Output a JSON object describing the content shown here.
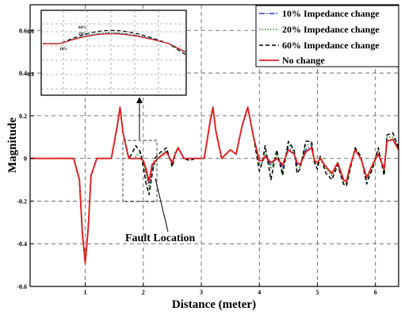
{
  "chart_data": {
    "type": "line",
    "title": "",
    "xlabel": "Distance (meter)",
    "ylabel": "Magnitude",
    "xlim": [
      0.05,
      6.4
    ],
    "ylim": [
      -0.6,
      0.72
    ],
    "x_ticks": [
      1,
      2,
      3,
      4,
      5,
      6
    ],
    "y_ticks": [
      -0.6,
      -0.4,
      -0.2,
      0,
      0.2,
      0.4,
      0.6
    ],
    "y_tick_labels": [
      "-0.6",
      "-0.4",
      "-0.2",
      "0",
      "0.2",
      "0.4",
      "0.6"
    ],
    "grid": true,
    "legend_position": "top-right",
    "series": [
      {
        "name": "10% Impedance change",
        "color": "#1f3fbf",
        "dash": "dash-dot",
        "x": [
          0.05,
          0.8,
          0.9,
          0.95,
          1.0,
          1.05,
          1.1,
          1.2,
          1.45,
          1.55,
          1.6,
          1.65,
          1.75,
          1.85,
          1.95,
          2.0,
          2.05,
          2.1,
          2.15,
          2.25,
          2.4,
          2.5,
          2.55,
          2.6,
          2.7,
          2.8,
          2.9,
          3.05,
          3.15,
          3.2,
          3.25,
          3.35,
          3.5,
          3.6,
          3.7,
          3.8,
          3.9,
          4.0,
          4.05,
          4.1,
          4.2,
          4.3,
          4.4,
          4.5,
          4.6,
          4.65,
          4.7,
          4.8,
          4.9,
          4.95,
          5.0,
          5.05,
          5.15,
          5.25,
          5.35,
          5.45,
          5.5,
          5.55,
          5.65,
          5.75,
          5.85,
          5.9,
          5.95,
          6.05,
          6.15,
          6.2,
          6.3,
          6.4
        ],
        "y": [
          0,
          0,
          -0.1,
          -0.35,
          -0.49,
          -0.33,
          -0.08,
          0,
          0,
          0.15,
          0.24,
          0.12,
          0,
          0,
          0,
          -0.01,
          -0.06,
          -0.12,
          -0.04,
          0,
          0.03,
          -0.02,
          0.02,
          0.05,
          0,
          0,
          0,
          0,
          0.17,
          0.24,
          0.13,
          0,
          0.04,
          0.02,
          0.15,
          0.24,
          0.1,
          -0.01,
          -0.02,
          0.01,
          -0.03,
          0,
          -0.04,
          0.05,
          0.02,
          -0.03,
          -0.03,
          0.04,
          0.06,
          -0.01,
          -0.02,
          0,
          -0.04,
          -0.07,
          -0.02,
          -0.1,
          -0.11,
          -0.05,
          0.04,
          0,
          -0.09,
          -0.06,
          -0.03,
          0.02,
          -0.05,
          0.08,
          0.09,
          0.05
        ]
      },
      {
        "name": "20% Impedance change",
        "color": "#1a8a1a",
        "dash": "dotted",
        "x": [
          0.05,
          0.8,
          0.9,
          0.95,
          1.0,
          1.05,
          1.1,
          1.2,
          1.45,
          1.55,
          1.6,
          1.65,
          1.75,
          1.85,
          1.9,
          1.95,
          2.0,
          2.05,
          2.1,
          2.15,
          2.25,
          2.4,
          2.5,
          2.55,
          2.6,
          2.7,
          2.8,
          2.9,
          3.05,
          3.15,
          3.2,
          3.25,
          3.35,
          3.5,
          3.6,
          3.7,
          3.8,
          3.9,
          4.0,
          4.05,
          4.1,
          4.2,
          4.3,
          4.4,
          4.5,
          4.6,
          4.65,
          4.7,
          4.8,
          4.9,
          4.95,
          5.0,
          5.05,
          5.15,
          5.25,
          5.35,
          5.45,
          5.5,
          5.55,
          5.65,
          5.75,
          5.85,
          5.9,
          5.95,
          6.05,
          6.15,
          6.2,
          6.3,
          6.4
        ],
        "y": [
          0,
          0,
          -0.1,
          -0.35,
          -0.49,
          -0.33,
          -0.08,
          0,
          0,
          0.15,
          0.24,
          0.12,
          0,
          0,
          0.02,
          0.03,
          -0.02,
          -0.08,
          -0.14,
          -0.05,
          0,
          0.04,
          -0.03,
          0.03,
          0.05,
          0,
          0,
          0,
          0,
          0.17,
          0.24,
          0.13,
          0,
          0.04,
          0.02,
          0.15,
          0.24,
          0.1,
          -0.03,
          -0.02,
          0.03,
          -0.05,
          0.02,
          -0.06,
          0.07,
          0.03,
          -0.05,
          -0.04,
          0.06,
          0.07,
          -0.02,
          -0.03,
          0.01,
          -0.05,
          -0.08,
          -0.03,
          -0.11,
          -0.12,
          -0.06,
          0.05,
          0,
          -0.1,
          -0.07,
          -0.04,
          0.04,
          -0.06,
          0.1,
          0.1,
          0.05
        ]
      },
      {
        "name": "60% Impedance change",
        "color": "#000000",
        "dash": "dashed",
        "x": [
          0.05,
          0.8,
          0.9,
          0.95,
          1.0,
          1.05,
          1.1,
          1.2,
          1.45,
          1.55,
          1.6,
          1.65,
          1.75,
          1.8,
          1.87,
          1.95,
          2.0,
          2.05,
          2.1,
          2.15,
          2.2,
          2.3,
          2.4,
          2.5,
          2.55,
          2.6,
          2.7,
          2.8,
          2.9,
          3.05,
          3.15,
          3.2,
          3.25,
          3.35,
          3.5,
          3.6,
          3.7,
          3.8,
          3.9,
          4.0,
          4.05,
          4.1,
          4.2,
          4.3,
          4.4,
          4.5,
          4.6,
          4.65,
          4.7,
          4.8,
          4.9,
          4.95,
          5.0,
          5.05,
          5.15,
          5.25,
          5.35,
          5.45,
          5.5,
          5.55,
          5.65,
          5.75,
          5.85,
          5.9,
          5.95,
          6.05,
          6.15,
          6.2,
          6.3,
          6.4
        ],
        "y": [
          0,
          0,
          -0.1,
          -0.35,
          -0.49,
          -0.33,
          -0.08,
          0,
          0,
          0.15,
          0.24,
          0.12,
          0,
          0.02,
          0.06,
          0.03,
          -0.04,
          -0.12,
          -0.17,
          -0.08,
          0,
          0.03,
          0.05,
          -0.04,
          0.02,
          0.05,
          0,
          -0.01,
          0,
          0,
          0.17,
          0.24,
          0.13,
          0,
          0.04,
          0.02,
          0.15,
          0.24,
          0.1,
          -0.06,
          -0.02,
          0.06,
          -0.1,
          0.04,
          -0.08,
          0.08,
          0.04,
          -0.07,
          -0.05,
          0.08,
          0.08,
          -0.02,
          -0.05,
          0.01,
          -0.07,
          -0.1,
          -0.03,
          -0.12,
          -0.13,
          -0.07,
          0.05,
          0.01,
          -0.12,
          -0.08,
          -0.05,
          0.05,
          -0.08,
          0.11,
          0.12,
          0.05
        ]
      },
      {
        "name": "No change",
        "color": "#e02020",
        "dash": "solid",
        "x": [
          0.05,
          0.8,
          0.9,
          0.95,
          1.0,
          1.05,
          1.1,
          1.2,
          1.45,
          1.55,
          1.6,
          1.65,
          1.75,
          1.85,
          1.95,
          2.0,
          2.05,
          2.1,
          2.15,
          2.25,
          2.4,
          2.5,
          2.55,
          2.6,
          2.7,
          2.8,
          2.9,
          3.05,
          3.15,
          3.2,
          3.25,
          3.35,
          3.5,
          3.6,
          3.7,
          3.8,
          3.9,
          4.0,
          4.05,
          4.1,
          4.2,
          4.3,
          4.4,
          4.5,
          4.6,
          4.65,
          4.7,
          4.8,
          4.9,
          4.95,
          5.0,
          5.05,
          5.15,
          5.25,
          5.35,
          5.45,
          5.5,
          5.55,
          5.65,
          5.75,
          5.85,
          5.9,
          5.95,
          6.05,
          6.15,
          6.2,
          6.3,
          6.4
        ],
        "y": [
          0,
          0,
          -0.1,
          -0.35,
          -0.49,
          -0.33,
          -0.08,
          0,
          0,
          0.15,
          0.24,
          0.12,
          0,
          0,
          0,
          -0.01,
          -0.05,
          -0.11,
          -0.03,
          0,
          0.03,
          -0.02,
          0.02,
          0.05,
          0,
          0,
          0,
          0,
          0.17,
          0.24,
          0.13,
          0,
          0.04,
          0.02,
          0.15,
          0.24,
          0.1,
          -0.01,
          -0.01,
          0.01,
          -0.02,
          0,
          -0.03,
          0.04,
          0.02,
          -0.02,
          -0.03,
          0.03,
          0.05,
          -0.01,
          -0.02,
          0,
          -0.04,
          -0.07,
          -0.02,
          -0.1,
          -0.11,
          -0.05,
          0.04,
          0,
          -0.09,
          -0.06,
          -0.03,
          0.02,
          -0.05,
          0.08,
          0.09,
          0.04
        ]
      }
    ],
    "annotation": {
      "text": "Fault Location"
    },
    "inset": {
      "y_ticks": [
        0.4,
        0.6
      ],
      "y_tick_labels": [
        "0.4",
        "0.6"
      ],
      "curve_labels": [
        "60%",
        "20%",
        "10%"
      ]
    }
  }
}
